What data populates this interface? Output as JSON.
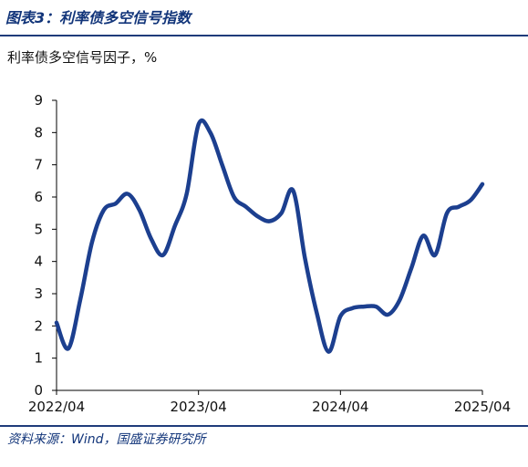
{
  "header": {
    "title": "图表3：利率债多空信号指数"
  },
  "footer": {
    "source": "资料来源：Wind，国盛证券研究所"
  },
  "chart_data": {
    "type": "line",
    "title": "利率债多空信号因子，%",
    "xlabel": "",
    "ylabel": "",
    "x_tick_labels": [
      "2022/04",
      "2023/04",
      "2024/04",
      "2025/04"
    ],
    "y_ticks": [
      0,
      1,
      2,
      3,
      4,
      5,
      6,
      7,
      8,
      9
    ],
    "ylim": [
      0,
      9
    ],
    "grid": false,
    "legend": "none",
    "series": [
      {
        "color": "#1c3f8f",
        "x": [
          "2022/04",
          "2022/05",
          "2022/06",
          "2022/07",
          "2022/08",
          "2022/09",
          "2022/10",
          "2022/11",
          "2022/12",
          "2023/01",
          "2023/02",
          "2023/03",
          "2023/04",
          "2023/05",
          "2023/06",
          "2023/07",
          "2023/08",
          "2023/09",
          "2023/10",
          "2023/11",
          "2023/12",
          "2024/01",
          "2024/02",
          "2024/03",
          "2024/04",
          "2024/05",
          "2024/06",
          "2024/07",
          "2024/08",
          "2024/09",
          "2024/10",
          "2024/11",
          "2024/12",
          "2025/01",
          "2025/02",
          "2025/03",
          "2025/04"
        ],
        "values": [
          2.1,
          1.3,
          2.8,
          4.6,
          5.6,
          5.8,
          6.1,
          5.6,
          4.7,
          4.2,
          5.1,
          6.1,
          8.25,
          8.0,
          7.0,
          6.0,
          5.7,
          5.4,
          5.25,
          5.5,
          6.2,
          4.1,
          2.4,
          1.2,
          2.3,
          2.55,
          2.6,
          2.6,
          2.35,
          2.8,
          3.8,
          4.8,
          4.2,
          5.5,
          5.7,
          5.9,
          6.4
        ]
      }
    ]
  }
}
